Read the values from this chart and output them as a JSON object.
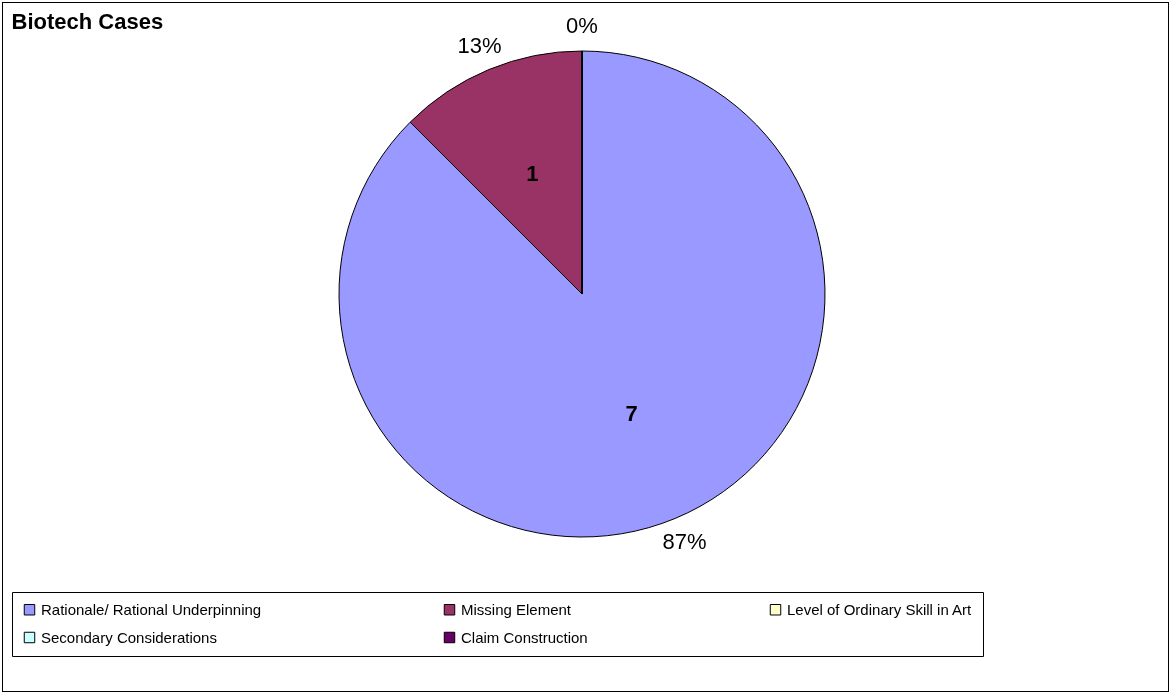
{
  "chart_data": {
    "type": "pie",
    "title": "Biotech Cases",
    "categories": [
      "Rationale/ Rational Underpinning",
      "Missing Element",
      "Level of Ordinary Skill in Art",
      "Secondary Considerations",
      "Claim Construction"
    ],
    "values": [
      7,
      1,
      0,
      0,
      0
    ],
    "colors": [
      "#9999ff",
      "#993366",
      "#ffffcc",
      "#ccffff",
      "#660066"
    ],
    "value_labels": [
      "7",
      "1",
      null,
      null,
      null
    ],
    "annotations": [
      "87%",
      "13%",
      "0%"
    ],
    "legend": "bottom"
  }
}
